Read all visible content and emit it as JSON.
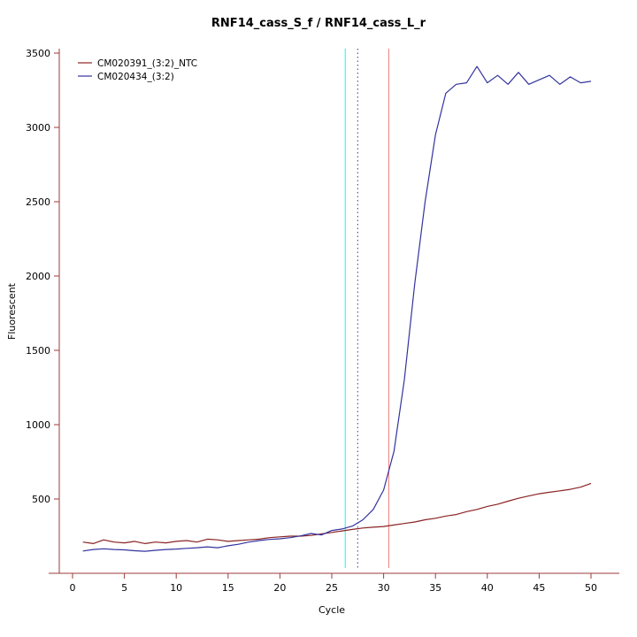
{
  "chart_data": {
    "type": "line",
    "title": "RNF14_cass_S_f / RNF14_cass_L_r",
    "xlabel": "Cycle",
    "ylabel": "Fluorescent",
    "xlim": [
      0,
      50
    ],
    "ylim": [
      0,
      3500
    ],
    "xticks": [
      0,
      5,
      10,
      15,
      20,
      25,
      30,
      35,
      40,
      45,
      50
    ],
    "yticks": [
      500,
      1000,
      1500,
      2000,
      2500,
      3000,
      3500
    ],
    "grid": false,
    "legend_position": "top-left-inside",
    "axis_color": "#9e3a3a",
    "x": [
      1,
      2,
      3,
      4,
      5,
      6,
      7,
      8,
      9,
      10,
      11,
      12,
      13,
      14,
      15,
      16,
      17,
      18,
      19,
      20,
      21,
      22,
      23,
      24,
      25,
      26,
      27,
      28,
      29,
      30,
      31,
      32,
      33,
      34,
      35,
      36,
      37,
      38,
      39,
      40,
      41,
      42,
      43,
      44,
      45,
      46,
      47,
      48,
      49,
      50
    ],
    "series": [
      {
        "name": "CM020391_(3:2)_NTC",
        "color": "#8b2323",
        "values": [
          210,
          200,
          225,
          210,
          205,
          215,
          200,
          210,
          205,
          215,
          220,
          210,
          230,
          225,
          215,
          220,
          225,
          230,
          240,
          245,
          250,
          250,
          255,
          265,
          275,
          285,
          295,
          305,
          310,
          315,
          325,
          335,
          345,
          360,
          370,
          385,
          395,
          415,
          430,
          450,
          465,
          485,
          505,
          520,
          535,
          545,
          555,
          565,
          580,
          605
        ]
      },
      {
        "name": "CM020434_(3:2)",
        "color": "#33339e",
        "values": [
          150,
          160,
          165,
          160,
          158,
          152,
          148,
          155,
          160,
          163,
          168,
          172,
          178,
          172,
          185,
          195,
          210,
          220,
          228,
          232,
          240,
          252,
          268,
          258,
          288,
          298,
          318,
          360,
          430,
          560,
          820,
          1300,
          1950,
          2500,
          2950,
          3230,
          3290,
          3300,
          3410,
          3300,
          3350,
          3290,
          3370,
          3290,
          3320,
          3350,
          3290,
          3340,
          3300,
          3310
        ]
      }
    ],
    "vlines": [
      {
        "x": 26.3,
        "color": "#00ffff",
        "style": "solid",
        "label": "threshold-cyan"
      },
      {
        "x": 27.5,
        "color": "#33339e",
        "style": "dotted",
        "label": "ct-dotted"
      },
      {
        "x": 30.5,
        "color": "#f08080",
        "style": "solid",
        "label": "threshold-salmon"
      }
    ]
  }
}
